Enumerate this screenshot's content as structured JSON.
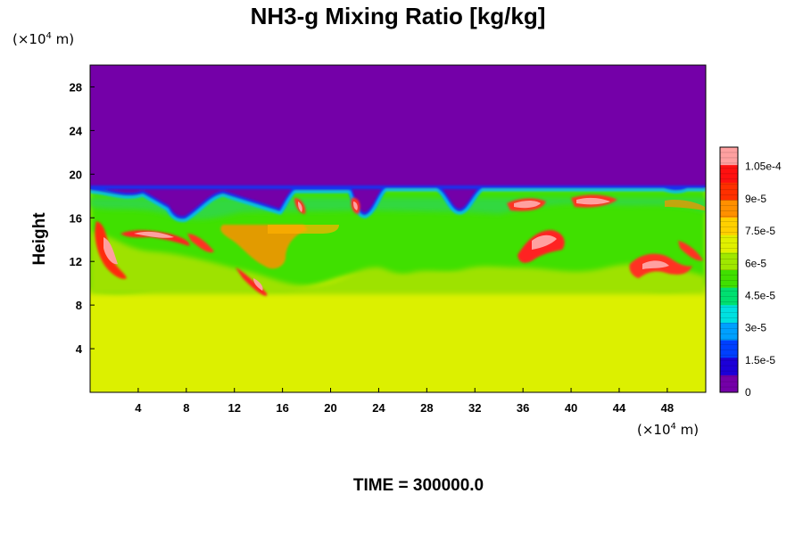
{
  "chart_data": {
    "type": "heatmap",
    "title": "NH3-g Mixing Ratio [kg/kg]",
    "ylabel": "Height",
    "xlabel": "",
    "x_unit": {
      "prefix": "(×10",
      "exp": "4",
      "suffix": " m)"
    },
    "y_unit": {
      "prefix": "(×10",
      "exp": "4",
      "suffix": " m)"
    },
    "xlim": [
      0,
      51.2
    ],
    "ylim": [
      0,
      30
    ],
    "x_ticks": [
      4,
      8,
      12,
      16,
      20,
      24,
      28,
      32,
      36,
      40,
      44,
      48
    ],
    "y_ticks": [
      4,
      8,
      12,
      16,
      20,
      24,
      28
    ],
    "colorbar": {
      "range": [
        0,
        0.000114
      ],
      "ticks": [
        {
          "value": 0,
          "label": "0"
        },
        {
          "value": 1.5e-05,
          "label": "1.5e-5"
        },
        {
          "value": 3e-05,
          "label": "3e-5"
        },
        {
          "value": 4.5e-05,
          "label": "4.5e-5"
        },
        {
          "value": 6e-05,
          "label": "6e-5"
        },
        {
          "value": 7.5e-05,
          "label": "7.5e-5"
        },
        {
          "value": 9e-05,
          "label": "9e-5"
        },
        {
          "value": 0.000105,
          "label": "1.05e-4"
        }
      ],
      "stops": [
        "#7400a8",
        "#1c00d8",
        "#0040ff",
        "#00a0ff",
        "#00e0e0",
        "#00e070",
        "#40e000",
        "#a0e800",
        "#e0f000",
        "#ffd000",
        "#ff9000",
        "#ff3000",
        "#ff1010",
        "#ffa0a0"
      ]
    },
    "regions": {
      "upper_value": 0,
      "lower_value": 7.8e-05,
      "lower_top_height": 9,
      "mixed_layer_height_range": [
        9,
        18.7
      ]
    },
    "grid": false,
    "legend_position": "right"
  },
  "footer": {
    "time_label": "TIME = 300000.0"
  }
}
